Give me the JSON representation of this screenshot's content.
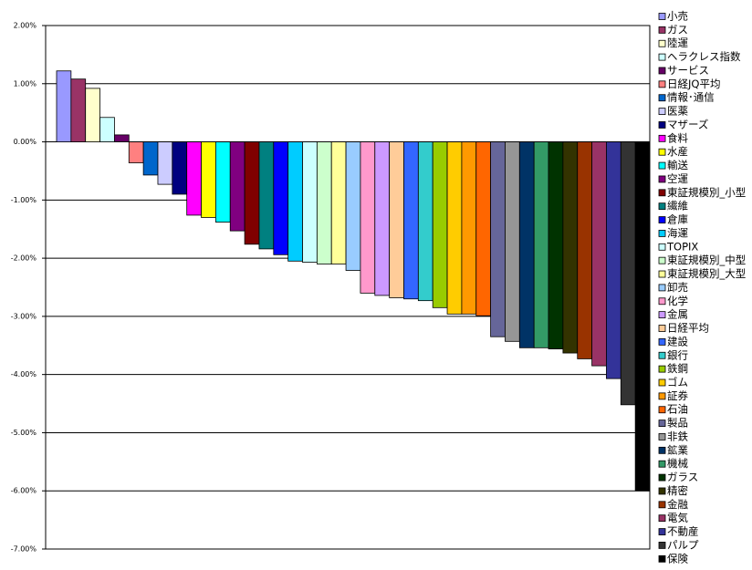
{
  "chart_data": {
    "type": "bar",
    "categories": [
      "小売",
      "ガス",
      "陸運",
      "ヘラクレス指数",
      "サービス",
      "日経JQ平均",
      "情報･通信",
      "医薬",
      "マザーズ",
      "食料",
      "水産",
      "輸送",
      "空運",
      "東証規模別_小型",
      "繊維",
      "倉庫",
      "海運",
      "TOPIX",
      "東証規模別_中型",
      "東証規模別_大型",
      "卸売",
      "化学",
      "金属",
      "日経平均",
      "建設",
      "銀行",
      "鉄鋼",
      "ゴム",
      "証券",
      "石油",
      "製品",
      "非鉄",
      "鉱業",
      "機械",
      "ガラス",
      "精密",
      "金融",
      "電気",
      "不動産",
      "パルプ",
      "保険"
    ],
    "values": [
      1.22,
      1.08,
      0.92,
      0.42,
      0.12,
      -0.36,
      -0.57,
      -0.73,
      -0.9,
      -1.26,
      -1.3,
      -1.38,
      -1.53,
      -1.76,
      -1.84,
      -1.94,
      -2.05,
      -2.07,
      -2.1,
      -2.1,
      -2.21,
      -2.6,
      -2.64,
      -2.68,
      -2.7,
      -2.73,
      -2.85,
      -2.96,
      -2.96,
      -2.99,
      -3.35,
      -3.43,
      -3.54,
      -3.54,
      -3.56,
      -3.63,
      -3.73,
      -3.85,
      -4.07,
      -4.52,
      -6.0
    ],
    "colors": [
      "#9999ff",
      "#993366",
      "#ffffcc",
      "#ccffff",
      "#660066",
      "#ff8080",
      "#0066cc",
      "#ccccff",
      "#000080",
      "#ff00ff",
      "#ffff00",
      "#00ffff",
      "#800080",
      "#800000",
      "#008080",
      "#0000ff",
      "#00ccff",
      "#ccffff",
      "#ccffcc",
      "#ffff99",
      "#99ccff",
      "#ff99cc",
      "#cc99ff",
      "#ffcc99",
      "#3366ff",
      "#33cccc",
      "#99cc00",
      "#ffcc00",
      "#ff9900",
      "#ff6600",
      "#666699",
      "#969696",
      "#003366",
      "#339966",
      "#003300",
      "#333300",
      "#993300",
      "#993366",
      "#333399",
      "#333333",
      "#000000"
    ],
    "ylim": [
      -7,
      2
    ],
    "yticks": [
      {
        "value": 2,
        "label": "2.00%"
      },
      {
        "value": 1,
        "label": "1.00%"
      },
      {
        "value": 0,
        "label": "0.00%"
      },
      {
        "value": -1,
        "label": "-1.00%"
      },
      {
        "value": -2,
        "label": "-2.00%"
      },
      {
        "value": -3,
        "label": "-3.00%"
      },
      {
        "value": -4,
        "label": "-4.00%"
      },
      {
        "value": -5,
        "label": "-5.00%"
      },
      {
        "value": -6,
        "label": "-6.00%"
      },
      {
        "value": -7,
        "label": "-7.00%"
      }
    ],
    "grid": true,
    "legend": "right"
  }
}
